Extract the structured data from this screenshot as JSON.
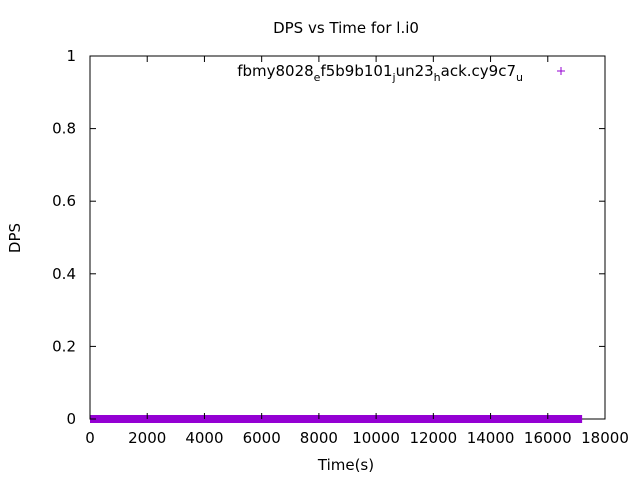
{
  "chart_data": {
    "type": "scatter",
    "title": "DPS vs Time for l.i0",
    "xlabel": "Time(s)",
    "ylabel": "DPS",
    "xlim": [
      0,
      18000
    ],
    "ylim": [
      0,
      1
    ],
    "xticks": [
      0,
      2000,
      4000,
      6000,
      8000,
      10000,
      12000,
      14000,
      16000,
      18000
    ],
    "yticks": [
      0,
      0.2,
      0.4,
      0.6,
      0.8,
      1
    ],
    "ytick_labels": [
      "0",
      "0.2",
      "0.4",
      "0.6",
      "0.8",
      "1"
    ],
    "grid": false,
    "legend_position": "top-right",
    "series": [
      {
        "name": "fbmy8028_ef5b9b101_jun23_hack.cy9c7_u",
        "legend_parts": [
          {
            "text": "fbmy8028",
            "sub": false
          },
          {
            "text": "e",
            "sub": true
          },
          {
            "text": "f5b9b101",
            "sub": false
          },
          {
            "text": "j",
            "sub": true
          },
          {
            "text": "un23",
            "sub": false
          },
          {
            "text": "h",
            "sub": true
          },
          {
            "text": "ack.cy9c7",
            "sub": false
          },
          {
            "text": "u",
            "sub": true
          }
        ],
        "color": "#9400d3",
        "marker": "+",
        "x_range": [
          0,
          17200
        ],
        "y_value": 0
      }
    ]
  }
}
